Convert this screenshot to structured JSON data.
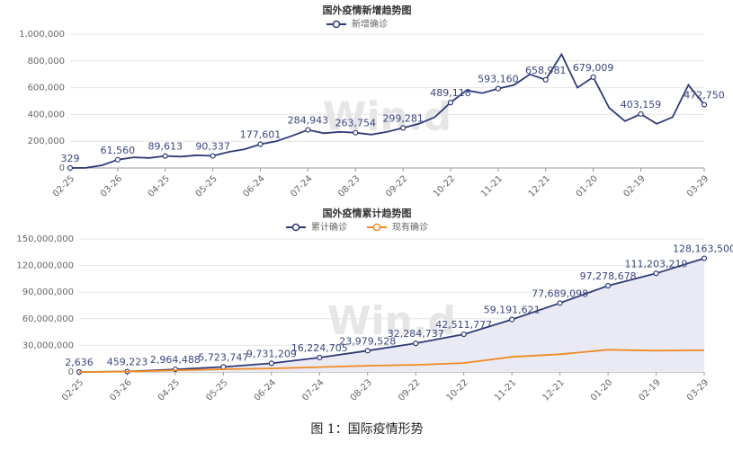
{
  "chart_data": [
    {
      "type": "line",
      "title": "国外疫情新增趋势图",
      "legend": "top-center",
      "grid": true,
      "watermark": "Win.d",
      "categories": [
        "02-25",
        null,
        null,
        "03-26",
        null,
        null,
        "04-25",
        null,
        null,
        "05-25",
        null,
        null,
        "06-24",
        null,
        null,
        "07-24",
        null,
        null,
        "08-23",
        null,
        null,
        "09-22",
        null,
        null,
        "10-22",
        null,
        null,
        "11-21",
        null,
        null,
        "12-21",
        null,
        null,
        "01-20",
        null,
        null,
        "02-19",
        null,
        null,
        null,
        "03-29"
      ],
      "ylim": [
        0,
        1000000
      ],
      "yticks": [
        0,
        {
          "value": 200000,
          "label": "200,000"
        },
        {
          "value": 400000,
          "label": "400,000"
        },
        {
          "value": 600000,
          "label": "600,000"
        },
        {
          "value": 800000,
          "label": "800,000"
        },
        {
          "value": 1000000,
          "label": "1,000,000"
        }
      ],
      "series": [
        {
          "name": "新增确诊",
          "color": "#2e3a78",
          "values": [
            329,
            1500,
            20000,
            61560,
            80000,
            75000,
            89613,
            85000,
            95000,
            90337,
            120000,
            140000,
            177601,
            200000,
            240000,
            284943,
            260000,
            270000,
            263754,
            250000,
            270000,
            299281,
            330000,
            380000,
            489118,
            580000,
            560000,
            593160,
            620000,
            700000,
            658981,
            850000,
            600000,
            679009,
            450000,
            350000,
            403159,
            330000,
            380000,
            620000,
            472750
          ],
          "value_labels": [
            "329",
            null,
            null,
            "61,560",
            null,
            null,
            "89,613",
            null,
            null,
            "90,337",
            null,
            null,
            "177,601",
            null,
            null,
            "284,943",
            null,
            null,
            "263,754",
            null,
            null,
            "299,281",
            null,
            null,
            "489,118",
            null,
            null,
            "593,160",
            null,
            null,
            "658,981",
            null,
            null,
            "679,009",
            null,
            null,
            "403,159",
            null,
            null,
            null,
            "472,750"
          ]
        }
      ]
    },
    {
      "type": "line",
      "title": "国外疫情累计趋势图",
      "legend": "top-center",
      "grid": true,
      "watermark": "Win.d",
      "categories": [
        "02-25",
        "03-26",
        "04-25",
        "05-25",
        "06-24",
        "07-24",
        "08-23",
        "09-22",
        "10-22",
        "11-21",
        "12-21",
        "01-20",
        "02-19",
        "03-29"
      ],
      "ylim": [
        0,
        150000000
      ],
      "yticks": [
        0,
        {
          "value": 30000000,
          "label": "30,000,000"
        },
        {
          "value": 60000000,
          "label": "60,000,000"
        },
        {
          "value": 90000000,
          "label": "90,000,000"
        },
        {
          "value": 120000000,
          "label": "120,000,000"
        },
        {
          "value": 150000000,
          "label": "150,000,000"
        }
      ],
      "series": [
        {
          "name": "累计确诊",
          "color": "#2e3a78",
          "area_color": "#e9eaf3",
          "values": [
            2636,
            459223,
            2964488,
            5723747,
            9731209,
            16224705,
            23979528,
            32284737,
            42511777,
            59191621,
            77689098,
            97278678,
            111203219,
            128163500
          ],
          "value_labels": [
            "2,636",
            "459,223",
            "2,964,488",
            "5,723,747",
            "9,731,209",
            "16,224,705",
            "23,979,528",
            "32,284,737",
            "42,511,777",
            "59,191,621",
            "77,689,098",
            "97,278,678",
            "111,203,219",
            "128,163,500"
          ]
        },
        {
          "name": "现有确诊",
          "color": "#f08a24",
          "values": [
            0,
            300000,
            1800000,
            3000000,
            4000000,
            5500000,
            7000000,
            8000000,
            10000000,
            17000000,
            20000000,
            25000000,
            24000000,
            24500000
          ]
        }
      ]
    },
    {
      "type": "caption",
      "title": "图 1：国际疫情形势"
    }
  ]
}
